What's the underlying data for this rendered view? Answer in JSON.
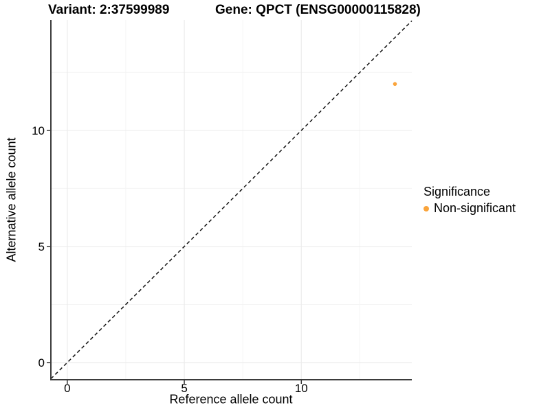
{
  "colors": {
    "background": "#ffffff",
    "grid_major": "#ececec",
    "grid_minor": "#f4f4f4",
    "axis_line": "#3b3b3b",
    "tick_mark": "#333333",
    "text": "#000000",
    "point": "#faa43b",
    "identity_line": "#111111"
  },
  "chart_data": {
    "type": "scatter",
    "title_left": "Variant: 2:37599989",
    "title_right": "Gene: QPCT (ENSG00000115828)",
    "xlabel": "Reference allele count",
    "ylabel": "Alternative allele count",
    "xlim": [
      -0.7,
      14.72
    ],
    "ylim": [
      -0.74,
      14.76
    ],
    "x_ticks": [
      0,
      5,
      10
    ],
    "y_ticks": [
      0,
      5,
      10
    ],
    "x_minor_ticks": [
      2.5,
      7.5,
      12.5
    ],
    "y_minor_ticks": [
      2.5,
      7.5,
      12.5
    ],
    "grid": "major and minor, light gray on white",
    "identity_line": {
      "equation": "y = x",
      "style": "dashed",
      "color": "#111111"
    },
    "series": [
      {
        "name": "Non-significant",
        "color": "#faa43b",
        "points": [
          {
            "x": 14,
            "y": 12
          }
        ]
      }
    ],
    "legend": {
      "title": "Significance",
      "position": "right"
    }
  }
}
